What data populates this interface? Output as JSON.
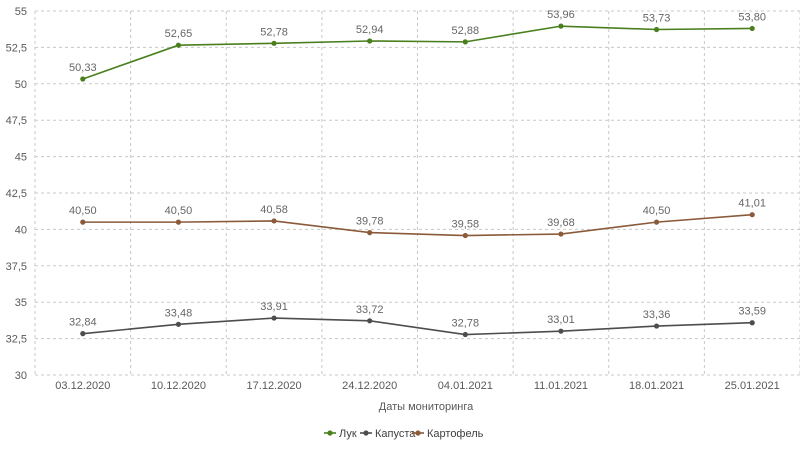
{
  "chart_data": {
    "type": "line",
    "title": "",
    "xlabel": "Даты мониторинга",
    "ylabel": "",
    "ylim": [
      30,
      55
    ],
    "yticks": [
      30,
      32.5,
      35,
      37.5,
      40,
      42.5,
      45,
      47.5,
      50,
      52.5,
      55
    ],
    "ytick_labels": [
      "30",
      "32,5",
      "35",
      "37,5",
      "40",
      "42,5",
      "45",
      "47,5",
      "50",
      "52,5",
      "55"
    ],
    "grid": true,
    "legend_position": "bottom",
    "categories": [
      "03.12.2020",
      "10.12.2020",
      "17.12.2020",
      "24.12.2020",
      "04.01.2021",
      "11.01.2021",
      "18.01.2021",
      "25.01.2021"
    ],
    "series": [
      {
        "name": "Лук",
        "color": "#4a7f1e",
        "values": [
          50.33,
          52.65,
          52.78,
          52.94,
          52.88,
          53.96,
          53.73,
          53.8
        ],
        "labels": [
          "50,33",
          "52,65",
          "52,78",
          "52,94",
          "52,88",
          "53,96",
          "53,73",
          "53,80"
        ]
      },
      {
        "name": "Капуста",
        "color": "#4d4d4d",
        "values": [
          32.84,
          33.48,
          33.91,
          33.72,
          32.78,
          33.01,
          33.36,
          33.59
        ],
        "labels": [
          "32,84",
          "33,48",
          "33,91",
          "33,72",
          "32,78",
          "33,01",
          "33,36",
          "33,59"
        ]
      },
      {
        "name": "Картофель",
        "color": "#8b5a3a",
        "values": [
          40.5,
          40.5,
          40.58,
          39.78,
          39.58,
          39.68,
          40.5,
          41.01
        ],
        "labels": [
          "40,50",
          "40,50",
          "40,58",
          "39,78",
          "39,58",
          "39,68",
          "40,50",
          "41,01"
        ]
      }
    ]
  }
}
